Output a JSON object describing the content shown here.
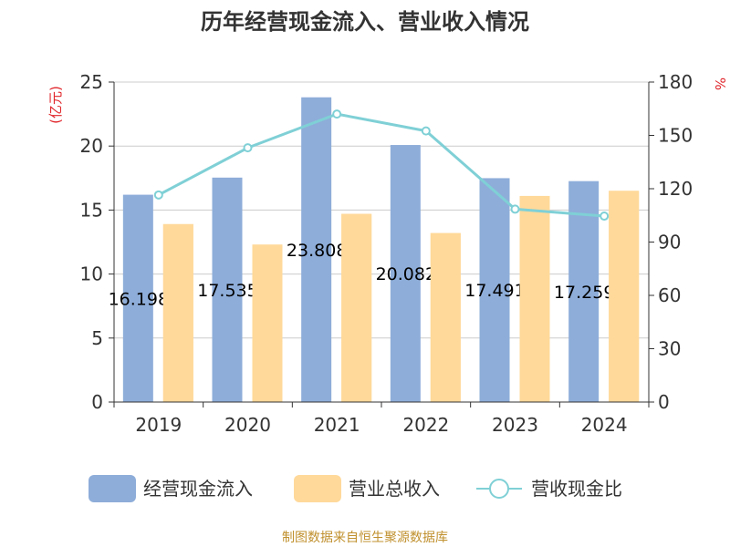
{
  "chart_data": {
    "type": "bar",
    "title": "历年经营现金流入、营业收入情况",
    "categories": [
      "2019",
      "2020",
      "2021",
      "2022",
      "2023",
      "2024"
    ],
    "series": [
      {
        "name": "经营现金流入",
        "type": "bar",
        "axis": "left",
        "color": "#8eadd9",
        "values": [
          16.198,
          17.535,
          23.808,
          20.082,
          17.491,
          17.259
        ],
        "labels": [
          "16.198",
          "17.535",
          "23.808",
          "20.082",
          "17.491",
          "17.259"
        ]
      },
      {
        "name": "营业总收入",
        "type": "bar",
        "axis": "left",
        "color": "#ffd99a",
        "values": [
          13.9,
          12.3,
          14.7,
          13.2,
          16.1,
          16.5
        ]
      },
      {
        "name": "营收现金比",
        "type": "line",
        "axis": "right",
        "color": "#7fd0d6",
        "values": [
          116.5,
          143.0,
          162.0,
          152.5,
          108.5,
          104.6
        ]
      }
    ],
    "left_axis": {
      "label": "(亿元)",
      "ylim": [
        0,
        25
      ],
      "ticks": [
        "0",
        "5",
        "10",
        "15",
        "20",
        "25"
      ]
    },
    "right_axis": {
      "label": "%",
      "ylim": [
        0,
        180
      ],
      "ticks": [
        "0",
        "30",
        "60",
        "90",
        "120",
        "150",
        "180"
      ]
    },
    "grid": true,
    "legend_position": "bottom"
  },
  "source": "制图数据来自恒生聚源数据库"
}
